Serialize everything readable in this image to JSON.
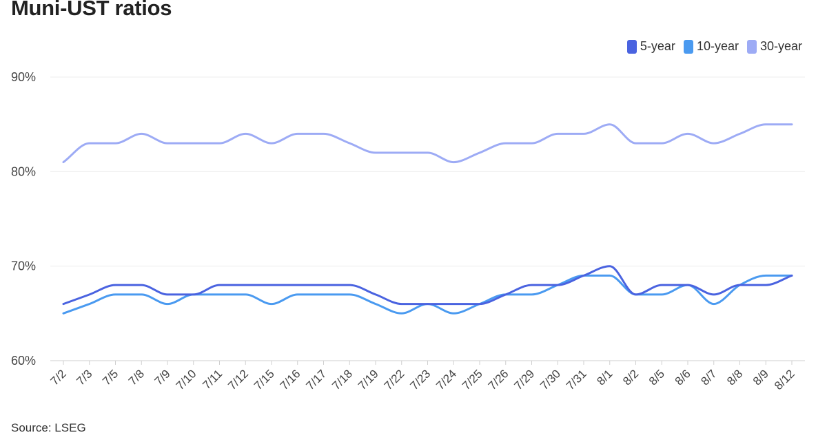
{
  "chart_data": {
    "type": "line",
    "title": "Muni-UST ratios",
    "source": "Source: LSEG",
    "xlabel": "",
    "ylabel": "",
    "categories": [
      "7/2",
      "7/3",
      "7/5",
      "7/8",
      "7/9",
      "7/10",
      "7/11",
      "7/12",
      "7/15",
      "7/16",
      "7/17",
      "7/18",
      "7/19",
      "7/22",
      "7/23",
      "7/24",
      "7/25",
      "7/26",
      "7/29",
      "7/30",
      "7/31",
      "8/1",
      "8/2",
      "8/5",
      "8/6",
      "8/7",
      "8/8",
      "8/9",
      "8/12"
    ],
    "y_ticks": [
      "60%",
      "70%",
      "80%",
      "90%"
    ],
    "y_tick_values": [
      60,
      70,
      80,
      90
    ],
    "ylim": [
      60,
      90
    ],
    "grid": true,
    "legend_position": "top-right",
    "series": [
      {
        "name": "5-year",
        "color": "#4a63e0",
        "values": [
          66,
          67,
          68,
          68,
          67,
          67,
          68,
          68,
          68,
          68,
          68,
          68,
          67,
          66,
          66,
          66,
          66,
          67,
          68,
          68,
          69,
          70,
          67,
          68,
          68,
          67,
          68,
          68,
          69
        ]
      },
      {
        "name": "10-year",
        "color": "#4a9af0",
        "values": [
          65,
          66,
          67,
          67,
          66,
          67,
          67,
          67,
          66,
          67,
          67,
          67,
          66,
          65,
          66,
          65,
          66,
          67,
          67,
          68,
          69,
          69,
          67,
          67,
          68,
          66,
          68,
          69,
          69
        ]
      },
      {
        "name": "30-year",
        "color": "#9dabf5",
        "values": [
          81,
          83,
          83,
          84,
          83,
          83,
          83,
          84,
          83,
          84,
          84,
          83,
          82,
          82,
          82,
          81,
          82,
          83,
          83,
          84,
          84,
          85,
          83,
          83,
          84,
          83,
          84,
          85,
          85
        ]
      }
    ]
  }
}
